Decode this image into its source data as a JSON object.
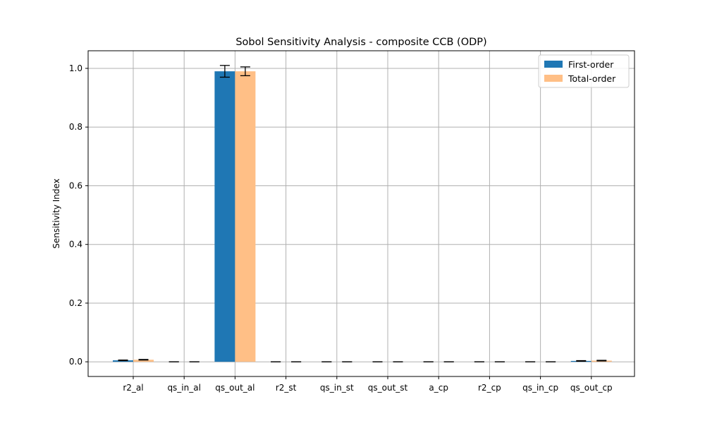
{
  "chart_data": {
    "type": "bar",
    "title": "Sobol Sensitivity Analysis - composite CCB (ODP)",
    "xlabel": "",
    "ylabel": "Sensitivity Index",
    "categories": [
      "r2_al",
      "qs_in_al",
      "qs_out_al",
      "r2_st",
      "qs_in_st",
      "qs_out_st",
      "a_cp",
      "r2_cp",
      "qs_in_cp",
      "qs_out_cp"
    ],
    "series": [
      {
        "name": "First-order",
        "color": "#1f77b4",
        "values": [
          0.005,
          0.0,
          0.99,
          0.0,
          0.0,
          0.0,
          0.0,
          0.0,
          0.0,
          0.003
        ],
        "errors": [
          0.001,
          0.0,
          0.02,
          0.0,
          0.0,
          0.0,
          0.0,
          0.0,
          0.0,
          0.001
        ]
      },
      {
        "name": "Total-order",
        "color": "#ffbf86",
        "values": [
          0.007,
          0.0,
          0.99,
          0.0,
          0.0,
          0.0,
          0.0,
          0.0,
          0.0,
          0.004
        ],
        "errors": [
          0.001,
          0.0,
          0.015,
          0.0,
          0.0,
          0.0,
          0.0,
          0.0,
          0.0,
          0.001
        ]
      }
    ],
    "ylim": [
      -0.05,
      1.06
    ],
    "yticks": [
      "0.0",
      "0.2",
      "0.4",
      "0.6",
      "0.8",
      "1.0"
    ],
    "grid": true,
    "legend": "top-right"
  }
}
